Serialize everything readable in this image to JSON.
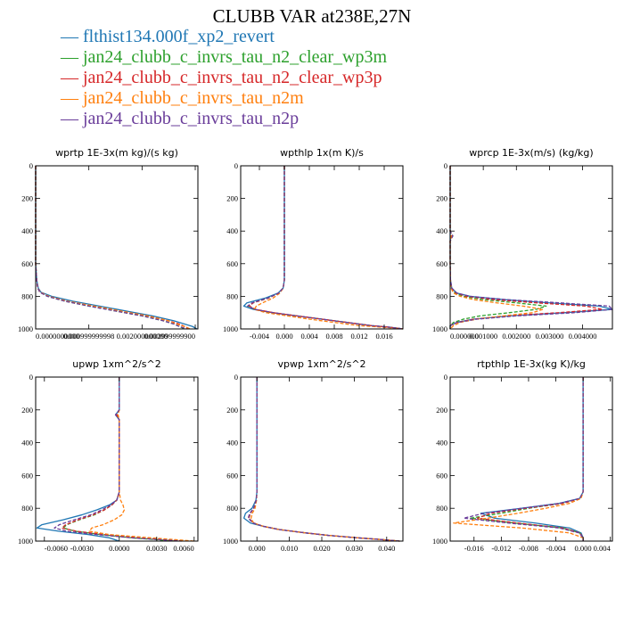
{
  "title": "CLUBB VAR at238E,27N",
  "legend": [
    {
      "label": "flthist134.000f_xp2_revert",
      "color": "#1f77b4",
      "dash": "solid"
    },
    {
      "label": "jan24_clubb_c_invrs_tau_n2_clear_wp3m",
      "color": "#2ca02c",
      "dash": "dashed"
    },
    {
      "label": "jan24_clubb_c_invrs_tau_n2_clear_wp3p",
      "color": "#d62728",
      "dash": "dashed"
    },
    {
      "label": "jan24_clubb_c_invrs_tau_n2m",
      "color": "#ff7f0e",
      "dash": "dashed"
    },
    {
      "label": "jan24_clubb_c_invrs_tau_n2p",
      "color": "#6a3d9a",
      "dash": "dashed"
    }
  ],
  "chart_data": [
    {
      "type": "line",
      "title": "wprtp  1E-3x(m kg)/(s kg)",
      "xlim": [
        0,
        0.00305
      ],
      "ylim": [
        1000,
        0
      ],
      "xticks": [
        {
          "v": 0,
          "label": "0.0000000000"
        },
        {
          "v": 0.001,
          "label": "0.000999999998"
        },
        {
          "v": 0.002,
          "label": "0.002000000000"
        },
        {
          "v": 0.003,
          "label": "0.002999999900"
        }
      ],
      "yticks": [
        0,
        200,
        400,
        600,
        800,
        1000
      ],
      "y": [
        0,
        100,
        200,
        300,
        400,
        500,
        600,
        700,
        750,
        775,
        800,
        830,
        860,
        890,
        920,
        950,
        970,
        985,
        1000
      ],
      "series": [
        {
          "x": [
            0,
            0,
            0,
            0,
            0,
            0,
            0,
            2e-05,
            5e-05,
            0.0001,
            0.0003,
            0.0007,
            0.0012,
            0.0017,
            0.0022,
            0.0026,
            0.0028,
            0.00295,
            0.00303
          ]
        },
        {
          "x": [
            0,
            0,
            0,
            0,
            0,
            0,
            0,
            2e-05,
            4e-05,
            8e-05,
            0.00022,
            0.00055,
            0.001,
            0.0015,
            0.002,
            0.0024,
            0.0026,
            0.0027,
            0.0028
          ]
        },
        {
          "x": [
            0,
            0,
            0,
            0,
            0,
            0,
            0,
            2e-05,
            4e-05,
            8e-05,
            0.00023,
            0.00058,
            0.00105,
            0.00155,
            0.0021,
            0.0025,
            0.0027,
            0.0028,
            0.0029
          ]
        },
        {
          "x": [
            0,
            0,
            0,
            0,
            0,
            0,
            0,
            2e-05,
            4e-05,
            9e-05,
            0.00025,
            0.0006,
            0.0011,
            0.0016,
            0.0021,
            0.0025,
            0.00265,
            0.0028,
            0.0029
          ]
        },
        {
          "x": [
            0,
            0,
            0,
            0,
            0,
            0,
            0,
            2e-05,
            4e-05,
            8e-05,
            0.00022,
            0.00055,
            0.001,
            0.0015,
            0.002,
            0.0024,
            0.0026,
            0.0027,
            0.00285
          ]
        }
      ]
    },
    {
      "type": "line",
      "title": "wpthlp  1x(m K)/s",
      "xlim": [
        -0.007,
        0.019
      ],
      "ylim": [
        1000,
        0
      ],
      "xticks": [
        {
          "v": -0.004,
          "label": "-0.004"
        },
        {
          "v": 0,
          "label": "0.000"
        },
        {
          "v": 0.004,
          "label": "0.004"
        },
        {
          "v": 0.008,
          "label": "0.008"
        },
        {
          "v": 0.012,
          "label": "0.012"
        },
        {
          "v": 0.016,
          "label": "0.016"
        }
      ],
      "yticks": [
        0,
        200,
        400,
        600,
        800,
        1000
      ],
      "y": [
        0,
        100,
        200,
        300,
        400,
        500,
        600,
        700,
        750,
        780,
        810,
        840,
        860,
        880,
        900,
        920,
        940,
        960,
        980,
        990,
        1000
      ],
      "series": [
        {
          "x": [
            0,
            0,
            0,
            0,
            0,
            0,
            0,
            0,
            -0.0002,
            -0.001,
            -0.003,
            -0.006,
            -0.0065,
            -0.005,
            -0.002,
            0.002,
            0.006,
            0.01,
            0.014,
            0.017,
            0.019
          ]
        },
        {
          "x": [
            0,
            0,
            0,
            0,
            0,
            0,
            0,
            0,
            -0.0002,
            -0.0009,
            -0.0025,
            -0.005,
            -0.0058,
            -0.0048,
            -0.002,
            0.002,
            0.006,
            0.01,
            0.014,
            0.017,
            0.019
          ]
        },
        {
          "x": [
            0,
            0,
            0,
            0,
            0,
            0,
            0,
            0,
            -0.0002,
            -0.0009,
            -0.0025,
            -0.005,
            -0.0056,
            -0.0046,
            -0.0018,
            0.002,
            0.006,
            0.01,
            0.014,
            0.017,
            0.019
          ]
        },
        {
          "x": [
            0,
            0,
            0,
            0,
            0,
            0,
            0,
            0,
            -0.0002,
            -0.0007,
            -0.0018,
            -0.0035,
            -0.0045,
            -0.0048,
            -0.003,
            0.0005,
            0.004,
            0.008,
            0.012,
            0.016,
            0.019
          ]
        },
        {
          "x": [
            0,
            0,
            0,
            0,
            0,
            0,
            0,
            0,
            -0.0002,
            -0.0009,
            -0.0026,
            -0.0052,
            -0.0059,
            -0.0047,
            -0.0018,
            0.002,
            0.006,
            0.01,
            0.014,
            0.017,
            0.019
          ]
        }
      ]
    },
    {
      "type": "line",
      "title": "wprcp  1E-3x(m/s) (kg/kg)",
      "xlim": [
        0,
        0.0049
      ],
      "ylim": [
        1000,
        0
      ],
      "xticks": [
        {
          "v": 0,
          "label": "0.000000"
        },
        {
          "v": 0.001,
          "label": "0.001000"
        },
        {
          "v": 0.002,
          "label": "0.002000"
        },
        {
          "v": 0.003,
          "label": "0.003000"
        },
        {
          "v": 0.004,
          "label": "0.004000"
        }
      ],
      "yticks": [
        0,
        200,
        400,
        600,
        800,
        1000
      ],
      "y": [
        0,
        100,
        200,
        300,
        400,
        430,
        460,
        500,
        600,
        700,
        750,
        780,
        800,
        820,
        840,
        860,
        880,
        900,
        920,
        940,
        960,
        980,
        1000
      ],
      "series": [
        {
          "x": [
            0,
            0,
            0,
            0,
            0,
            0,
            0,
            0,
            0,
            1e-05,
            5e-05,
            0.0002,
            0.0006,
            0.0016,
            0.003,
            0.0045,
            0.0049,
            0.0035,
            0.0018,
            0.0007,
            0.0002,
            0,
            0
          ]
        },
        {
          "x": [
            0,
            0,
            0,
            0,
            0,
            8e-05,
            0,
            0,
            0,
            1e-05,
            4e-05,
            0.00015,
            0.0004,
            0.001,
            0.002,
            0.0029,
            0.0026,
            0.0018,
            0.0009,
            0.0004,
            0.0001,
            0,
            0
          ]
        },
        {
          "x": [
            0,
            0,
            0,
            0,
            0,
            6e-05,
            0,
            0,
            0,
            1e-05,
            4e-05,
            0.00018,
            0.0005,
            0.0013,
            0.0026,
            0.0041,
            0.0046,
            0.0033,
            0.0017,
            0.0007,
            0.0002,
            0,
            0
          ]
        },
        {
          "x": [
            0,
            0,
            0,
            0,
            0,
            3e-05,
            0,
            0,
            0,
            1e-05,
            3e-05,
            0.0001,
            0.0003,
            0.0007,
            0.0014,
            0.0022,
            0.0028,
            0.0025,
            0.0016,
            0.0008,
            0.0003,
            0.0001,
            0
          ]
        },
        {
          "x": [
            0,
            0,
            0,
            0,
            0,
            8e-05,
            0,
            0,
            0,
            1e-05,
            5e-05,
            0.0002,
            0.0006,
            0.0017,
            0.0033,
            0.0048,
            0.0049,
            0.0038,
            0.002,
            0.0008,
            0.0002,
            0,
            0
          ]
        }
      ]
    },
    {
      "type": "line",
      "title": "upwp  1xm^2/s^2",
      "xlim": [
        -0.0067,
        0.0063
      ],
      "ylim": [
        1000,
        0
      ],
      "xticks": [
        {
          "v": -0.006,
          "label": "-0.0060"
        },
        {
          "v": -0.003,
          "label": "-0.0030"
        },
        {
          "v": 0,
          "label": "0.0000"
        },
        {
          "v": 0.003,
          "label": "0.0030"
        },
        {
          "v": 0.006,
          "label": "0.0060"
        }
      ],
      "yticks": [
        0,
        200,
        400,
        600,
        800,
        1000
      ],
      "y": [
        0,
        100,
        200,
        230,
        260,
        300,
        400,
        500,
        600,
        700,
        750,
        780,
        810,
        840,
        870,
        900,
        920,
        940,
        960,
        980,
        1000
      ],
      "series": [
        {
          "x": [
            0,
            0,
            0,
            -0.0003,
            0,
            0,
            0,
            0,
            0,
            0,
            -0.0002,
            -0.0008,
            -0.0018,
            -0.003,
            -0.0045,
            -0.0062,
            -0.0066,
            -0.0048,
            -0.0025,
            -0.0008,
            0
          ]
        },
        {
          "x": [
            0,
            0,
            0,
            -0.0002,
            0,
            0,
            0,
            0,
            0,
            0,
            -0.0002,
            -0.0006,
            -0.0012,
            -0.002,
            -0.0032,
            -0.0042,
            -0.0045,
            -0.0035,
            -0.0015,
            0.001,
            0.0045
          ]
        },
        {
          "x": [
            0,
            0,
            0,
            -0.0002,
            0,
            0,
            0,
            0,
            0,
            0,
            -0.0002,
            -0.0006,
            -0.0012,
            -0.0021,
            -0.0033,
            -0.0043,
            -0.0046,
            -0.0034,
            -0.0012,
            0.0015,
            0.0052
          ]
        },
        {
          "x": [
            0,
            0,
            0,
            -0.0001,
            0,
            0,
            0,
            0,
            0,
            0,
            0.0001,
            0.0003,
            0.0004,
            0.0002,
            -0.0004,
            -0.0013,
            -0.0022,
            -0.0024,
            -0.0008,
            0.0025,
            0.006
          ]
        },
        {
          "x": [
            0,
            0,
            0,
            -0.0003,
            0,
            0,
            0,
            0,
            0,
            0,
            -0.0002,
            -0.0007,
            -0.0014,
            -0.0023,
            -0.0036,
            -0.0048,
            -0.0052,
            -0.0042,
            -0.0018,
            0.001,
            0.005
          ]
        }
      ]
    },
    {
      "type": "line",
      "title": "vpwp  1xm^2/s^2",
      "xlim": [
        -0.005,
        0.045
      ],
      "ylim": [
        1000,
        0
      ],
      "xticks": [
        {
          "v": 0,
          "label": "0.000"
        },
        {
          "v": 0.01,
          "label": "0.010"
        },
        {
          "v": 0.02,
          "label": "0.020"
        },
        {
          "v": 0.03,
          "label": "0.030"
        },
        {
          "v": 0.04,
          "label": "0.040"
        }
      ],
      "yticks": [
        0,
        200,
        400,
        600,
        800,
        1000
      ],
      "y": [
        0,
        100,
        200,
        300,
        400,
        500,
        600,
        700,
        750,
        800,
        830,
        860,
        890,
        910,
        930,
        950,
        965,
        980,
        990,
        1000
      ],
      "series": [
        {
          "x": [
            0,
            0,
            0,
            0,
            0,
            0,
            0,
            0,
            -0.0003,
            -0.0015,
            -0.0035,
            -0.004,
            -0.002,
            0.002,
            0.007,
            0.015,
            0.022,
            0.031,
            0.038,
            0.044
          ]
        },
        {
          "x": [
            0,
            0,
            0,
            0,
            0,
            0,
            0,
            0,
            -0.0002,
            -0.001,
            -0.002,
            -0.0025,
            -0.001,
            0.002,
            0.007,
            0.015,
            0.022,
            0.031,
            0.038,
            0.044
          ]
        },
        {
          "x": [
            0,
            0,
            0,
            0,
            0,
            0,
            0,
            0,
            -0.0002,
            -0.001,
            -0.002,
            -0.0025,
            -0.001,
            0.002,
            0.007,
            0.015,
            0.022,
            0.031,
            0.038,
            0.044
          ]
        },
        {
          "x": [
            0,
            0,
            0,
            0,
            0,
            0,
            0,
            0,
            -0.0001,
            -0.0006,
            -0.0014,
            -0.0018,
            -0.001,
            0.002,
            0.007,
            0.015,
            0.022,
            0.031,
            0.038,
            0.044
          ]
        },
        {
          "x": [
            0,
            0,
            0,
            0,
            0,
            0,
            0,
            0,
            -0.0002,
            -0.001,
            -0.0022,
            -0.0027,
            -0.0012,
            0.002,
            0.007,
            0.015,
            0.022,
            0.031,
            0.038,
            0.044
          ]
        }
      ]
    },
    {
      "type": "line",
      "title": "rtpthlp  1E-3x(kg K)/kg",
      "xlim": [
        -0.0195,
        0.0043
      ],
      "ylim": [
        1000,
        0
      ],
      "xticks": [
        {
          "v": -0.016,
          "label": "-0.016"
        },
        {
          "v": -0.012,
          "label": "-0.012"
        },
        {
          "v": -0.008,
          "label": "-0.008"
        },
        {
          "v": -0.004,
          "label": "-0.004"
        },
        {
          "v": 0,
          "label": "0.000"
        },
        {
          "v": 0.004,
          "label": "0.004"
        }
      ],
      "yticks": [
        0,
        200,
        400,
        600,
        800,
        1000
      ],
      "y": [
        0,
        100,
        200,
        300,
        400,
        500,
        600,
        700,
        740,
        770,
        800,
        830,
        860,
        890,
        920,
        950,
        980,
        1000
      ],
      "series": [
        {
          "x": [
            0,
            0,
            0,
            0,
            0,
            0,
            0,
            0,
            -0.0005,
            -0.0035,
            -0.009,
            -0.015,
            -0.013,
            -0.007,
            -0.002,
            -0.0003,
            0,
            0
          ]
        },
        {
          "x": [
            0,
            0,
            0,
            0,
            0,
            0,
            0,
            0,
            -0.0004,
            -0.003,
            -0.008,
            -0.012,
            -0.0165,
            -0.01,
            -0.003,
            -0.0005,
            0,
            0
          ]
        },
        {
          "x": [
            0,
            0,
            0,
            0,
            0,
            0,
            0,
            0,
            -0.0004,
            -0.003,
            -0.0085,
            -0.0135,
            -0.0155,
            -0.0095,
            -0.003,
            -0.0005,
            0,
            0
          ]
        },
        {
          "x": [
            0,
            0,
            0,
            0,
            0,
            0,
            0,
            0,
            -0.0003,
            -0.002,
            -0.0055,
            -0.0095,
            -0.014,
            -0.019,
            -0.009,
            -0.002,
            0,
            0
          ]
        },
        {
          "x": [
            0,
            0,
            0,
            0,
            0,
            0,
            0,
            0,
            -0.0005,
            -0.0035,
            -0.009,
            -0.0145,
            -0.0175,
            -0.011,
            -0.0035,
            -0.0006,
            0,
            0
          ]
        }
      ]
    }
  ]
}
